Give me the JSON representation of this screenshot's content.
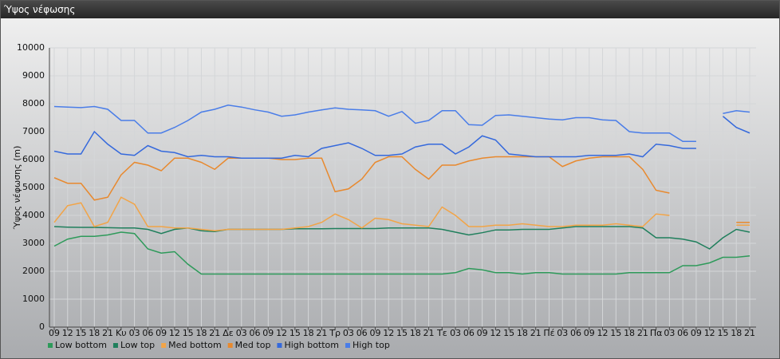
{
  "window": {
    "title": "Ύψος νέφωσης"
  },
  "chart_data": {
    "type": "line",
    "y_label": "Ύψος νέφωσης (m)",
    "categories": [
      "09",
      "12",
      "15",
      "18",
      "21",
      "Κυ",
      "03",
      "06",
      "09",
      "12",
      "15",
      "18",
      "21",
      "Δε",
      "03",
      "06",
      "09",
      "12",
      "15",
      "18",
      "21",
      "Τρ",
      "03",
      "06",
      "09",
      "12",
      "15",
      "18",
      "21",
      "Τε",
      "03",
      "06",
      "09",
      "12",
      "15",
      "18",
      "21",
      "Πέ",
      "03",
      "06",
      "09",
      "12",
      "15",
      "18",
      "21",
      "Πα",
      "03",
      "06",
      "09",
      "12",
      "15",
      "18",
      "21"
    ],
    "ylim": [
      0,
      10000
    ],
    "yticks": [
      0,
      1000,
      2000,
      3000,
      4000,
      5000,
      6000,
      7000,
      8000,
      9000,
      10000
    ],
    "grid": true,
    "legend": "bottom-left",
    "series": [
      {
        "name": "Low bottom",
        "color": "#2e9a5a",
        "values": [
          2900,
          3150,
          3250,
          3250,
          3300,
          3400,
          3350,
          2800,
          2650,
          2700,
          2250,
          1900,
          1900,
          1900,
          1900,
          1900,
          1900,
          1900,
          1900,
          1900,
          1900,
          1900,
          1900,
          1900,
          1900,
          1900,
          1900,
          1900,
          1900,
          1900,
          1950,
          2100,
          2050,
          1950,
          1950,
          1900,
          1950,
          1950,
          1900,
          1900,
          1900,
          1900,
          1900,
          1950,
          1950,
          1950,
          1950,
          2200,
          2200,
          2300,
          2500,
          2500,
          2550
        ]
      },
      {
        "name": "Low top",
        "color": "#1f7f5c",
        "values": [
          3600,
          3580,
          3570,
          3570,
          3560,
          3550,
          3550,
          3500,
          3350,
          3500,
          3550,
          3450,
          3420,
          3500,
          3500,
          3500,
          3500,
          3500,
          3520,
          3520,
          3520,
          3530,
          3530,
          3530,
          3530,
          3550,
          3550,
          3550,
          3550,
          3500,
          3400,
          3300,
          3380,
          3480,
          3480,
          3500,
          3500,
          3500,
          3550,
          3600,
          3600,
          3600,
          3600,
          3600,
          3550,
          3200,
          3200,
          3150,
          3050,
          2800,
          3200,
          3500,
          3400
        ]
      },
      {
        "name": "Med bottom",
        "color": "#f2a447",
        "values": [
          3750,
          4350,
          4450,
          3600,
          3750,
          4650,
          4400,
          3600,
          3600,
          3550,
          3550,
          3500,
          3450,
          3500,
          3500,
          3500,
          3500,
          3500,
          3550,
          3600,
          3750,
          4050,
          3850,
          3550,
          3900,
          3850,
          3700,
          3650,
          3600,
          4300,
          4000,
          3600,
          3600,
          3650,
          3650,
          3700,
          3650,
          3600,
          3600,
          3650,
          3650,
          3650,
          3700,
          3650,
          3600,
          4050,
          4000,
          null,
          null,
          null,
          null,
          3650,
          3650
        ]
      },
      {
        "name": "Med top",
        "color": "#e8892e",
        "values": [
          5350,
          5150,
          5150,
          4550,
          4650,
          5450,
          5900,
          5800,
          5600,
          6050,
          6050,
          5900,
          5650,
          6050,
          6050,
          6050,
          6050,
          6000,
          6000,
          6050,
          6050,
          4850,
          4950,
          5300,
          5900,
          6100,
          6100,
          5650,
          5300,
          5800,
          5800,
          5950,
          6050,
          6100,
          6100,
          6100,
          6100,
          6100,
          5750,
          5950,
          6050,
          6100,
          6100,
          6100,
          5650,
          4900,
          4800,
          null,
          null,
          null,
          null,
          3750,
          3750
        ]
      },
      {
        "name": "High bottom",
        "color": "#3569dc",
        "values": [
          6300,
          6200,
          6200,
          7000,
          6550,
          6200,
          6150,
          6500,
          6300,
          6250,
          6100,
          6150,
          6100,
          6100,
          6050,
          6050,
          6050,
          6050,
          6150,
          6100,
          6400,
          6500,
          6600,
          6400,
          6150,
          6150,
          6200,
          6450,
          6550,
          6550,
          6200,
          6450,
          6850,
          6700,
          6200,
          6150,
          6100,
          6100,
          6100,
          6100,
          6150,
          6150,
          6150,
          6200,
          6100,
          6550,
          6500,
          6400,
          6400,
          null,
          7550,
          7150,
          6950
        ]
      },
      {
        "name": "High top",
        "color": "#4a7de8",
        "values": [
          7900,
          7880,
          7860,
          7900,
          7800,
          7400,
          7400,
          6950,
          6950,
          7150,
          7400,
          7700,
          7800,
          7950,
          7880,
          7780,
          7700,
          7550,
          7600,
          7700,
          7780,
          7850,
          7800,
          7780,
          7750,
          7550,
          7720,
          7300,
          7400,
          7750,
          7750,
          7250,
          7230,
          7580,
          7600,
          7550,
          7500,
          7450,
          7420,
          7500,
          7500,
          7420,
          7400,
          7000,
          6950,
          6950,
          6950,
          6650,
          6650,
          null,
          7650,
          7750,
          7700
        ]
      }
    ]
  }
}
